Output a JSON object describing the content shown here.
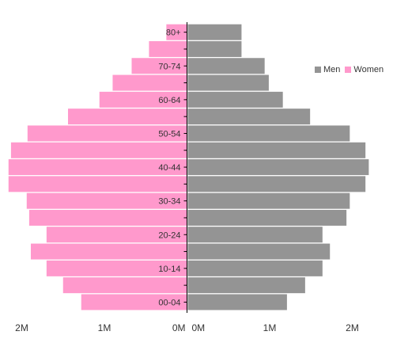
{
  "chart_data": {
    "type": "bar",
    "orientation": "horizontal-population-pyramid",
    "categories": [
      "00-04",
      "05-09",
      "10-14",
      "15-19",
      "20-24",
      "25-29",
      "30-34",
      "35-39",
      "40-44",
      "45-49",
      "50-54",
      "55-59",
      "60-64",
      "65-69",
      "70-74",
      "75-79",
      "80+"
    ],
    "y_tick_labels": [
      "00-04",
      "10-14",
      "20-24",
      "30-34",
      "40-44",
      "50-54",
      "60-64",
      "70-74",
      "80+"
    ],
    "series": [
      {
        "name": "Men",
        "color": "#949494",
        "values": [
          1.2,
          1.42,
          1.63,
          1.72,
          1.63,
          1.92,
          1.96,
          2.15,
          2.19,
          2.15,
          1.96,
          1.48,
          1.15,
          0.98,
          0.93,
          0.65,
          0.65
        ]
      },
      {
        "name": "Women",
        "color": "#ff99cc",
        "values": [
          1.28,
          1.5,
          1.7,
          1.89,
          1.7,
          1.91,
          1.94,
          2.16,
          2.16,
          2.13,
          1.93,
          1.44,
          1.06,
          0.9,
          0.67,
          0.46,
          0.25
        ]
      }
    ],
    "x_left_ticks": [
      "2M",
      "1M",
      "0M"
    ],
    "x_right_ticks": [
      "0M",
      "1M",
      "2M"
    ],
    "xlim": [
      0,
      2.2
    ],
    "legend": {
      "position": "right",
      "entries": [
        "Men",
        "Women"
      ]
    },
    "grid": false
  }
}
